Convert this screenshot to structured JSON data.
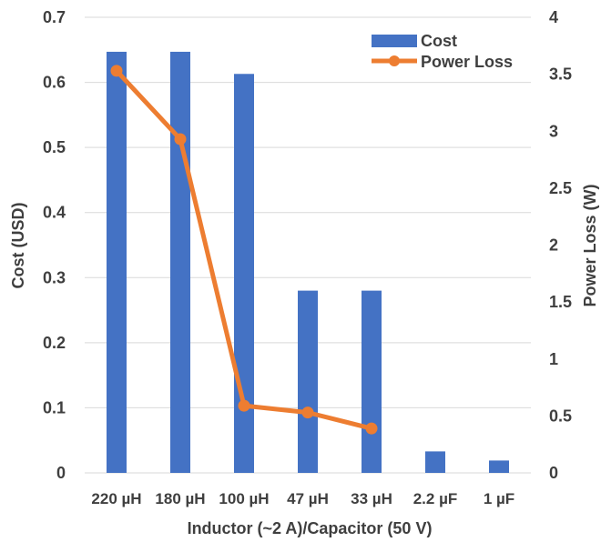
{
  "chart_data": {
    "type": "bar",
    "categories": [
      "220 µH",
      "180 µH",
      "100 µH",
      "47 µH",
      "33 µH",
      "2.2 µF",
      "1 µF"
    ],
    "series": [
      {
        "name": "Cost",
        "type": "bar",
        "axis": "left",
        "color": "#4472C4",
        "values": [
          0.647,
          0.647,
          0.613,
          0.28,
          0.28,
          0.033,
          0.019
        ]
      },
      {
        "name": "Power Loss",
        "type": "line",
        "axis": "right",
        "color": "#ED7D31",
        "values": [
          3.53,
          2.93,
          0.59,
          0.53,
          0.39,
          null,
          null
        ]
      }
    ],
    "xlabel": "Inductor (~2 A)/Capacitor (50 V)",
    "ylabel": "Cost (USD)",
    "y2label": "Power Loss (W)",
    "ylim": [
      0,
      0.7
    ],
    "y2lim": [
      0,
      4
    ],
    "yticks": [
      "0",
      "0.1",
      "0.2",
      "0.3",
      "0.4",
      "0.5",
      "0.6",
      "0.7"
    ],
    "y2ticks": [
      "0",
      "0.5",
      "1",
      "1.5",
      "2",
      "2.5",
      "3",
      "3.5",
      "4"
    ],
    "grid": true,
    "legend": "top-right"
  }
}
